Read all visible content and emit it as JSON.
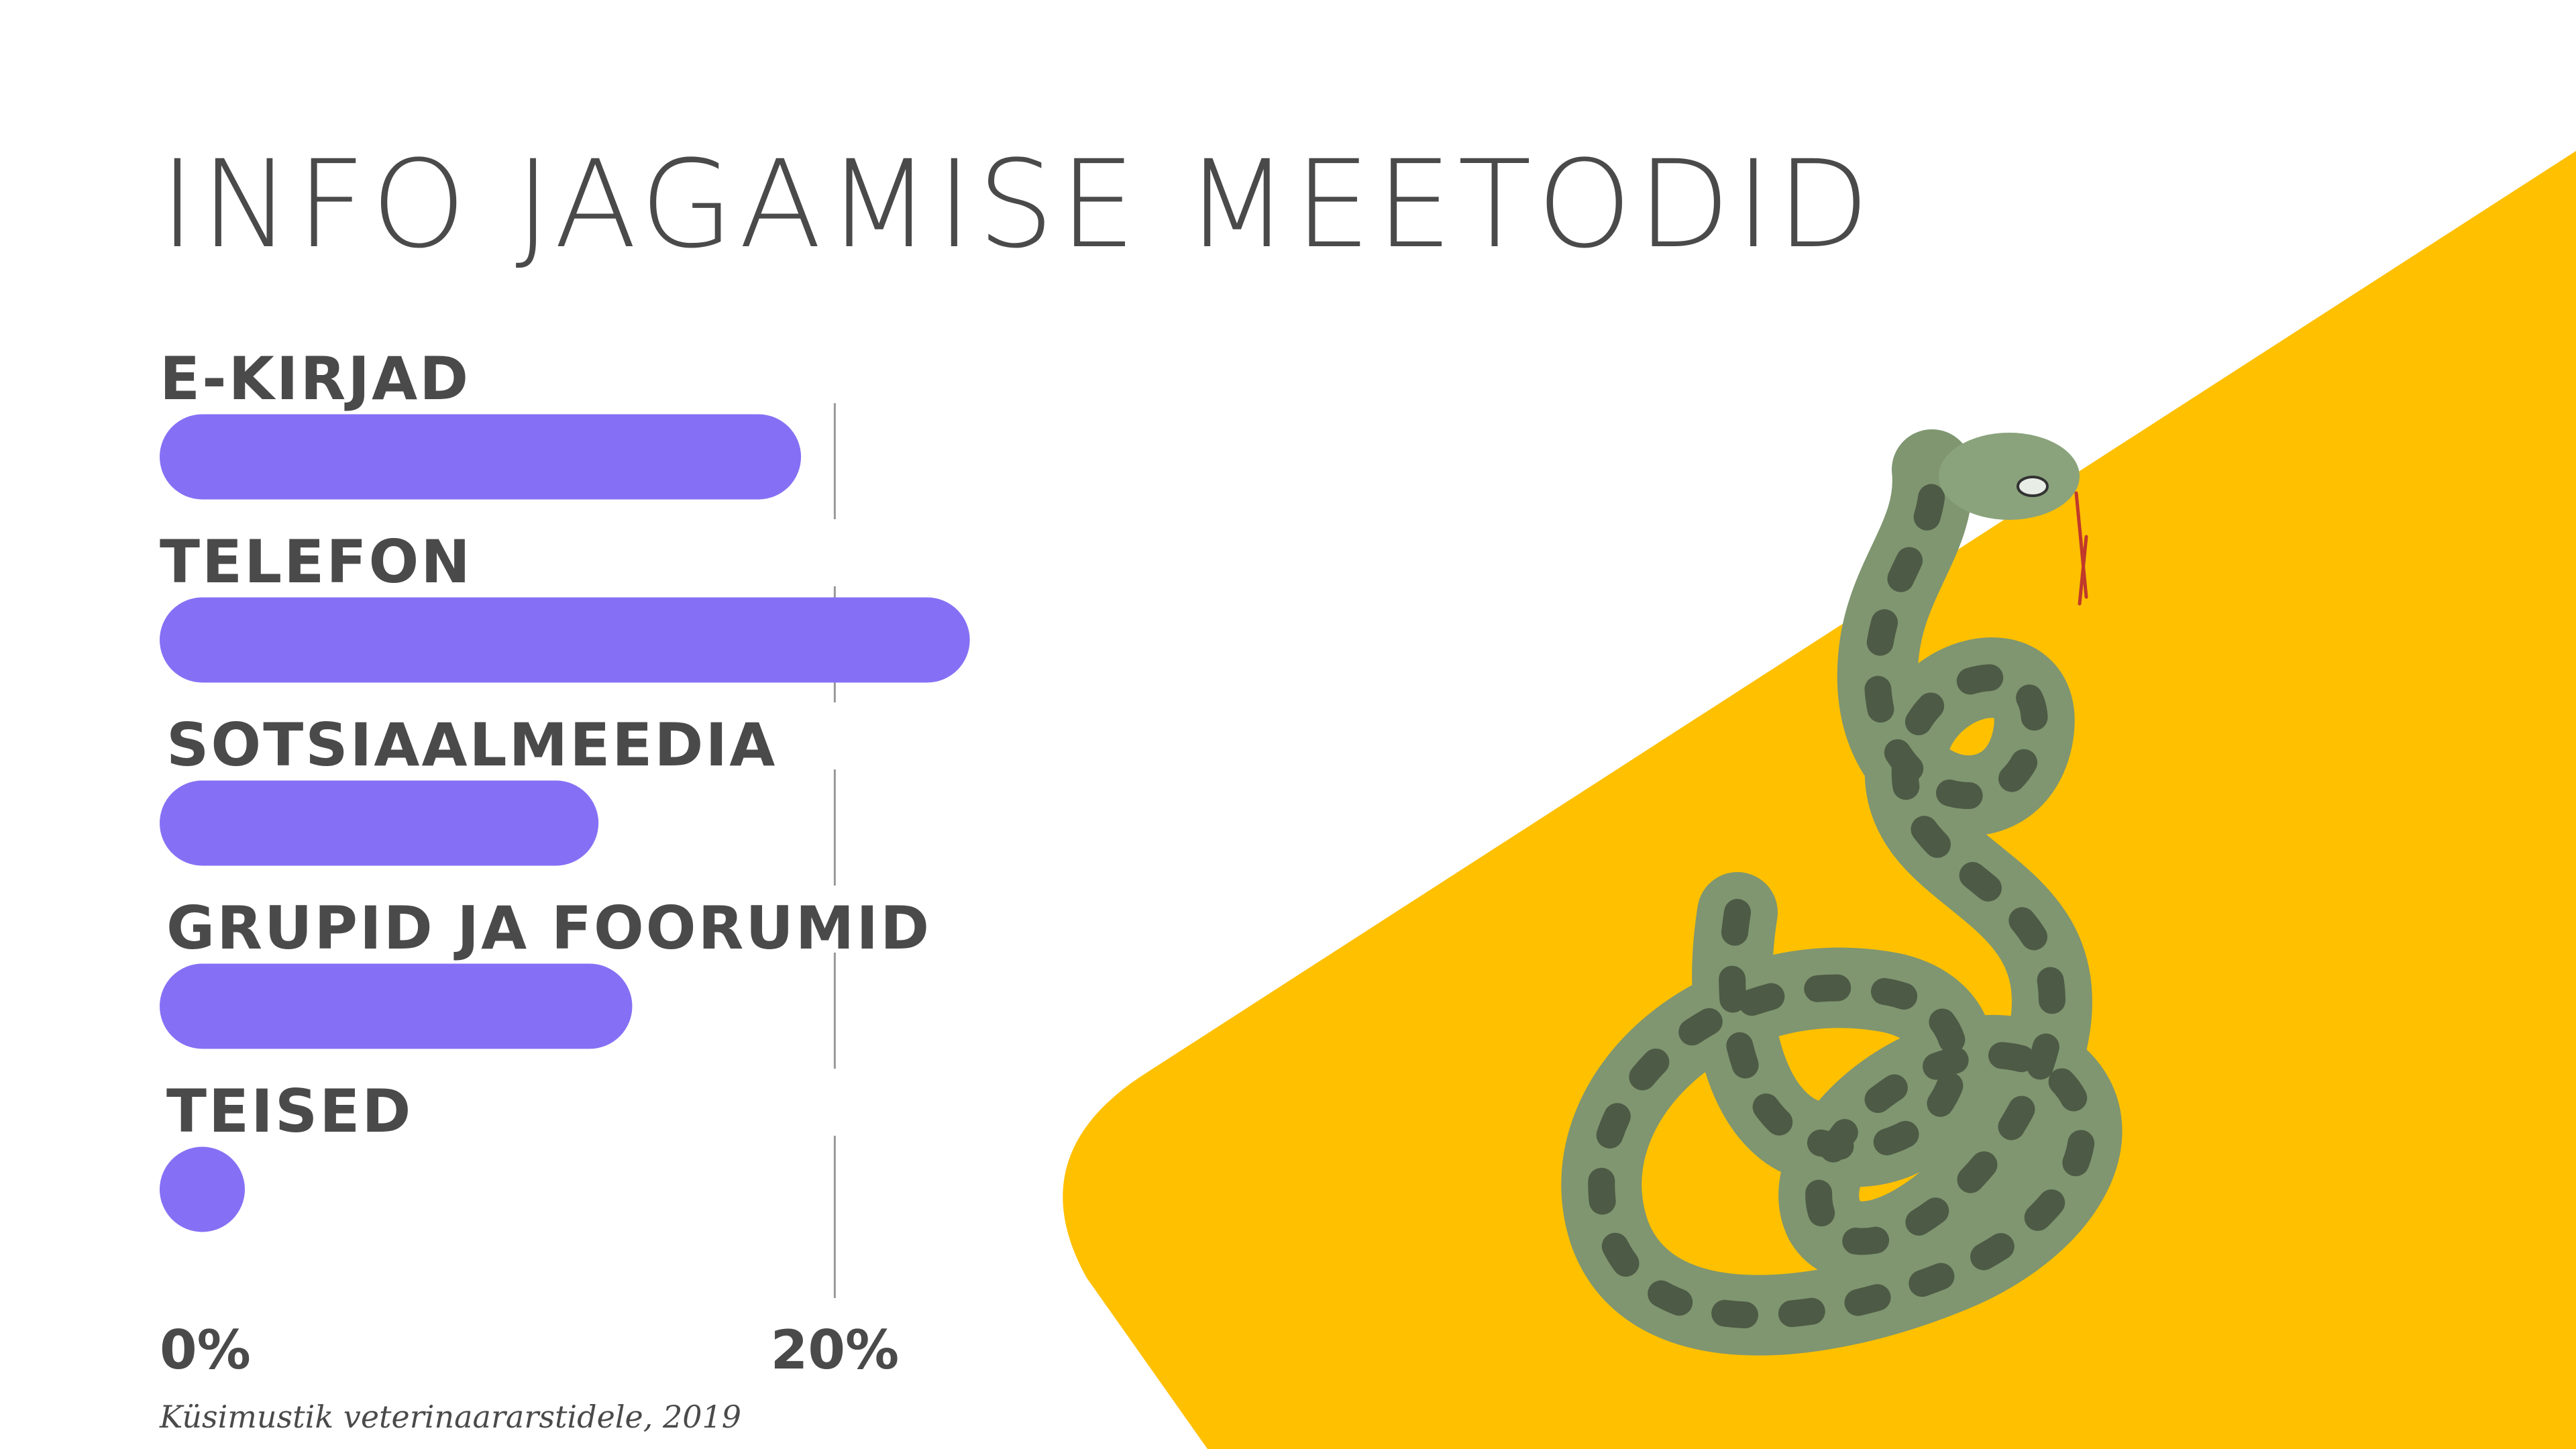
{
  "chart_data": {
    "type": "bar",
    "orientation": "horizontal",
    "title": "INFO JAGAMISE MEETODID",
    "categories": [
      "E-KIRJAD",
      "TELEFON",
      "SOTSIAALMEEDIA",
      "GRUPID JA FOORUMID",
      "TEISED"
    ],
    "values": [
      19,
      24,
      13,
      14,
      2
    ],
    "color": "#8570f5",
    "xlim": [
      0,
      25
    ],
    "xticks": [
      {
        "value": 0,
        "label": "0%"
      },
      {
        "value": 20,
        "label": "20%"
      }
    ],
    "grid": true,
    "source": "Küsimustik veterinaararstidele, 2019"
  }
}
